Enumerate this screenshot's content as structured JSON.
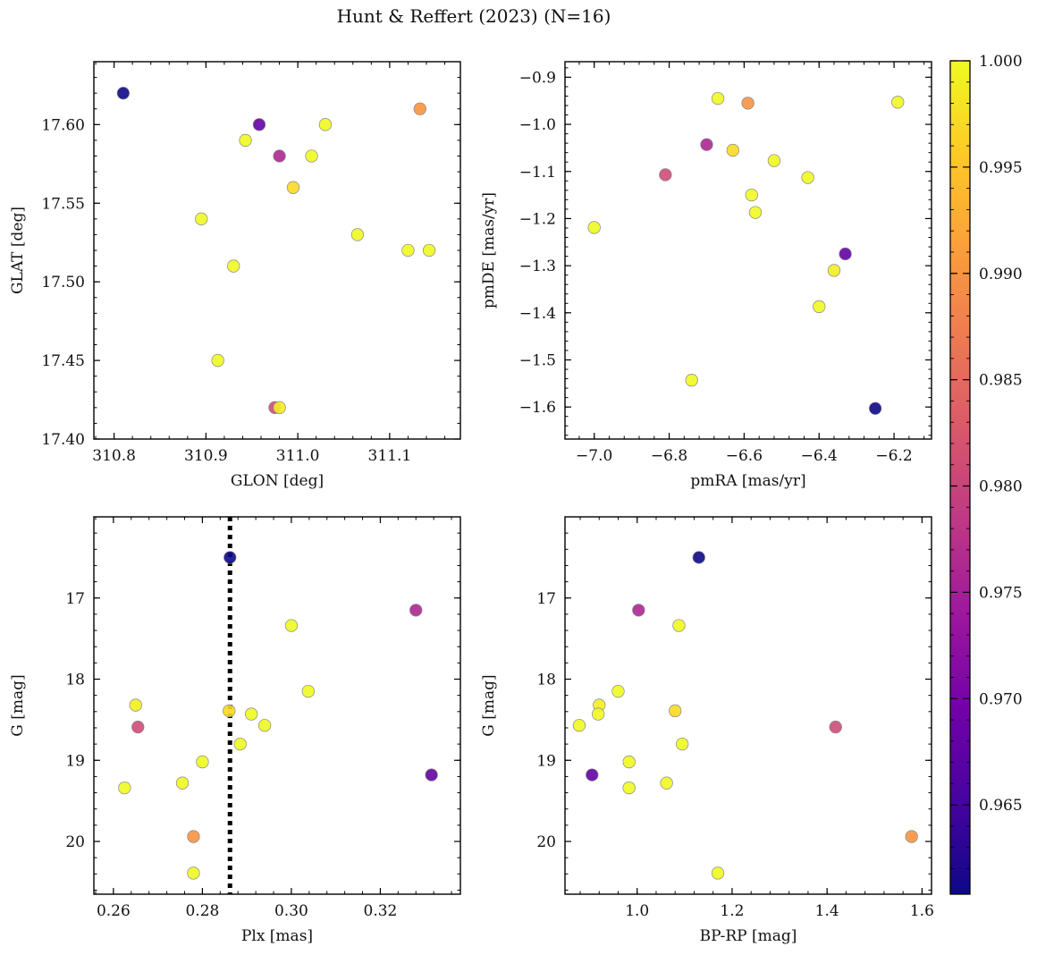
{
  "figure": {
    "title": "Hunt & Reffert (2023) (N=16)"
  },
  "chart_data": {
    "type": "scatter",
    "colorbar": {
      "min": 0.9608,
      "max": 1.0,
      "colormap": "plasma",
      "ticks": [
        0.965,
        0.97,
        0.975,
        0.98,
        0.985,
        0.99,
        0.995,
        1.0
      ],
      "tick_labels": [
        "0.965",
        "0.970",
        "0.975",
        "0.980",
        "0.985",
        "0.990",
        "0.995",
        "1.000"
      ]
    },
    "marker_colors": {
      "edge": "#888888",
      "colormap_stops": [
        "#0d0887",
        "#46039f",
        "#7201a8",
        "#9c179e",
        "#bd3786",
        "#d8576b",
        "#ed7953",
        "#fb9f3a",
        "#fdca26",
        "#f0f921"
      ]
    },
    "points": [
      {
        "glon": 310.81,
        "glat": 17.62,
        "pmra": -6.25,
        "pmde": -1.603,
        "plx": 0.2862,
        "g": 16.5,
        "bprp": 1.13,
        "prob": 0.9608
      },
      {
        "glon": 310.958,
        "glat": 17.6,
        "pmra": -6.33,
        "pmde": -1.275,
        "plx": 0.3315,
        "g": 19.18,
        "bprp": 0.905,
        "prob": 0.968
      },
      {
        "glon": 310.98,
        "glat": 17.58,
        "pmra": -6.7,
        "pmde": -1.043,
        "plx": 0.328,
        "g": 17.15,
        "bprp": 1.003,
        "prob": 0.976
      },
      {
        "glon": 310.975,
        "glat": 17.42,
        "pmra": -6.81,
        "pmde": -1.107,
        "plx": 0.2655,
        "g": 18.59,
        "bprp": 1.418,
        "prob": 0.981
      },
      {
        "glon": 311.133,
        "glat": 17.61,
        "pmra": -6.59,
        "pmde": -0.955,
        "plx": 0.278,
        "g": 19.94,
        "bprp": 1.578,
        "prob": 0.99
      },
      {
        "glon": 310.995,
        "glat": 17.56,
        "pmra": -6.63,
        "pmde": -1.055,
        "plx": 0.286,
        "g": 18.39,
        "bprp": 1.08,
        "prob": 0.997
      },
      {
        "glon": 310.98,
        "glat": 17.42,
        "pmra": -6.36,
        "pmde": -1.31,
        "plx": 0.265,
        "g": 18.32,
        "bprp": 0.92,
        "prob": 0.999
      },
      {
        "glon": 311.03,
        "glat": 17.6,
        "pmra": -6.67,
        "pmde": -0.945,
        "plx": 0.3,
        "g": 17.34,
        "bprp": 1.088,
        "prob": 1.0
      },
      {
        "glon": 311.015,
        "glat": 17.58,
        "pmra": -6.57,
        "pmde": -1.187,
        "plx": 0.291,
        "g": 18.43,
        "bprp": 0.918,
        "prob": 1.0
      },
      {
        "glon": 310.943,
        "glat": 17.59,
        "pmra": -6.52,
        "pmde": -1.077,
        "plx": 0.3038,
        "g": 18.15,
        "bprp": 0.96,
        "prob": 1.0
      },
      {
        "glon": 310.895,
        "glat": 17.54,
        "pmra": -6.58,
        "pmde": -1.15,
        "plx": 0.28,
        "g": 19.02,
        "bprp": 0.983,
        "prob": 1.0
      },
      {
        "glon": 310.93,
        "glat": 17.51,
        "pmra": -6.43,
        "pmde": -1.113,
        "plx": 0.2885,
        "g": 18.8,
        "bprp": 1.095,
        "prob": 1.0
      },
      {
        "glon": 310.913,
        "glat": 17.45,
        "pmra": -6.4,
        "pmde": -1.387,
        "plx": 0.294,
        "g": 18.57,
        "bprp": 0.878,
        "prob": 1.0
      },
      {
        "glon": 311.065,
        "glat": 17.53,
        "pmra": -7.0,
        "pmde": -1.219,
        "plx": 0.2625,
        "g": 19.34,
        "bprp": 0.983,
        "prob": 1.0
      },
      {
        "glon": 311.12,
        "glat": 17.52,
        "pmra": -6.19,
        "pmde": -0.953,
        "plx": 0.2755,
        "g": 19.28,
        "bprp": 1.062,
        "prob": 1.0
      },
      {
        "glon": 311.143,
        "glat": 17.52,
        "pmra": -6.74,
        "pmde": -1.543,
        "plx": 0.278,
        "g": 20.39,
        "bprp": 1.17,
        "prob": 1.0
      }
    ],
    "panels": [
      {
        "name": "panel-sky",
        "x_key": "glon",
        "y_key": "glat",
        "xlabel": "GLON [deg]",
        "ylabel": "GLAT [deg]",
        "xlim": [
          310.778,
          311.177
        ],
        "ylim": [
          17.4,
          17.64
        ],
        "xticks": [
          310.8,
          310.9,
          311.0,
          311.1
        ],
        "xtick_labels": [
          "310.8",
          "310.9",
          "311.0",
          "311.1"
        ],
        "xminor": 0.02,
        "yticks": [
          17.4,
          17.45,
          17.5,
          17.55,
          17.6
        ],
        "ytick_labels": [
          "17.40",
          "17.45",
          "17.50",
          "17.55",
          "17.60"
        ],
        "yminor": 0.01,
        "invert_y": false
      },
      {
        "name": "panel-proper-motion",
        "x_key": "pmra",
        "y_key": "pmde",
        "xlabel": "pmRA [mas/yr]",
        "ylabel": "pmDE [mas/yr]",
        "xlim": [
          -7.078,
          -6.1
        ],
        "ylim": [
          -1.668,
          -0.867
        ],
        "xticks": [
          -7.0,
          -6.8,
          -6.6,
          -6.4,
          -6.2
        ],
        "xtick_labels": [
          "−7.0",
          "−6.8",
          "−6.6",
          "−6.4",
          "−6.2"
        ],
        "xminor": 0.04,
        "yticks": [
          -1.6,
          -1.5,
          -1.4,
          -1.3,
          -1.2,
          -1.1,
          -1.0,
          -0.9
        ],
        "ytick_labels": [
          "−1.6",
          "−1.5",
          "−1.4",
          "−1.3",
          "−1.2",
          "−1.1",
          "−1.0",
          "−0.9"
        ],
        "yminor": 0.02,
        "invert_y": false
      },
      {
        "name": "panel-parallax",
        "x_key": "plx",
        "y_key": "g",
        "xlabel": "Plx [mas]",
        "ylabel": "G [mag]",
        "xlim": [
          0.2556,
          0.338
        ],
        "ylim": [
          16.0,
          20.65
        ],
        "xticks": [
          0.26,
          0.28,
          0.3,
          0.32
        ],
        "xtick_labels": [
          "0.26",
          "0.28",
          "0.30",
          "0.32"
        ],
        "xminor": 0.004,
        "yticks": [
          17,
          18,
          19,
          20
        ],
        "ytick_labels": [
          "17",
          "18",
          "19",
          "20"
        ],
        "yminor": 0.2,
        "invert_y": true,
        "vline": 0.2862
      },
      {
        "name": "panel-cmd",
        "x_key": "bprp",
        "y_key": "g",
        "xlabel": "BP-RP [mag]",
        "ylabel": "G [mag]",
        "xlim": [
          0.848,
          1.62
        ],
        "ylim": [
          16.0,
          20.65
        ],
        "xticks": [
          1.0,
          1.2,
          1.4,
          1.6
        ],
        "xtick_labels": [
          "1.0",
          "1.2",
          "1.4",
          "1.6"
        ],
        "xminor": 0.04,
        "yticks": [
          17,
          18,
          19,
          20
        ],
        "ytick_labels": [
          "17",
          "18",
          "19",
          "20"
        ],
        "yminor": 0.2,
        "invert_y": true
      }
    ]
  }
}
